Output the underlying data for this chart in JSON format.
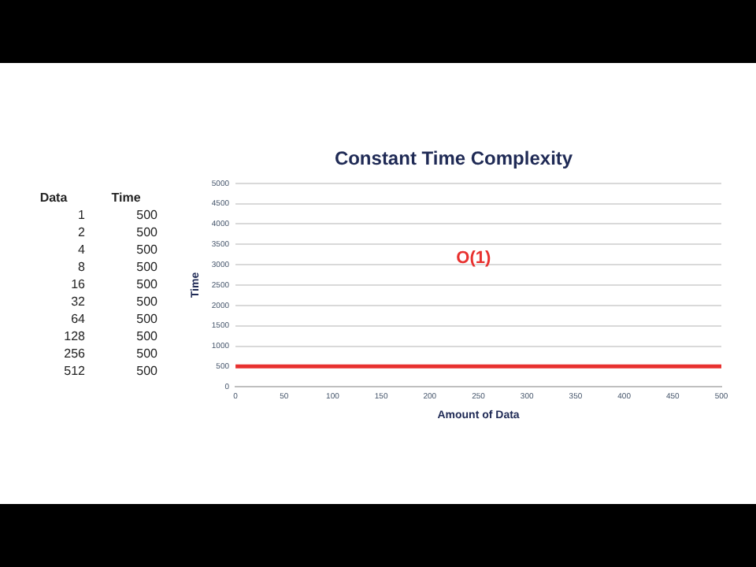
{
  "chart_data": [
    {
      "type": "other",
      "annotations": [
        "Data",
        "Time",
        "1",
        "500",
        "2",
        "500",
        "4",
        "500",
        "8",
        "500",
        "16",
        "500",
        "32",
        "500",
        "64",
        "500",
        "128",
        "500",
        "256",
        "500",
        "512",
        "500"
      ]
    },
    {
      "type": "line",
      "title": "Constant Time Complexity",
      "xlabel": "Amount of Data",
      "ylabel": "Time",
      "annotations": [
        "O(1)"
      ],
      "x": [
        0,
        500
      ],
      "series": [
        {
          "color": "#e8312f",
          "values": [
            500,
            500
          ]
        }
      ],
      "xlim": [
        0,
        500
      ],
      "xticks": [
        0,
        50,
        100,
        150,
        200,
        250,
        300,
        350,
        400,
        450,
        500
      ],
      "ylim": [
        0,
        5000
      ],
      "yticks": [
        0,
        500,
        1000,
        1500,
        2000,
        2500,
        3000,
        3500,
        4000,
        4500,
        5000
      ],
      "grid": "y",
      "legend": false,
      "marker": "none",
      "line_style": "solid"
    }
  ]
}
